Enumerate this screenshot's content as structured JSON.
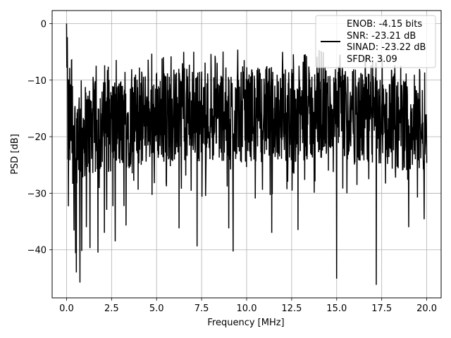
{
  "chart_data": {
    "type": "line",
    "xlabel": "Frequency [MHz]",
    "ylabel": "PSD [dB]",
    "xlim": [
      -0.8,
      20.8
    ],
    "ylim": [
      -48.5,
      2.3
    ],
    "xticks": [
      0.0,
      2.5,
      5.0,
      7.5,
      10.0,
      12.5,
      15.0,
      17.5,
      20.0
    ],
    "xtick_labels": [
      "0.0",
      "2.5",
      "5.0",
      "7.5",
      "10.0",
      "12.5",
      "15.0",
      "17.5",
      "20.0"
    ],
    "yticks": [
      0,
      -10,
      -20,
      -30,
      -40
    ],
    "ytick_labels": [
      "0",
      "−10",
      "−20",
      "−30",
      "−40"
    ],
    "grid": true,
    "legend_position": "top-right",
    "colors": {
      "line": "#000000",
      "grid": "#b0b0b0"
    },
    "series": [
      {
        "name": "ENOB: -4.15 bits\nSNR: -23.21 dB\nSINAD: -23.22 dB\nSFDR: 3.09",
        "legend_lines": [
          "ENOB: -4.15 bits",
          "SNR: -23.21 dB",
          "SINAD: -23.22 dB",
          "SFDR: 3.09"
        ],
        "x_start": 0.0,
        "x_end": 20.0,
        "points": 1400,
        "start_values": [
          0.0,
          -7.8,
          -2.5,
          -16.0
        ],
        "envelope": [
          {
            "x": 0.0,
            "top": -6.0,
            "bottom": -30.0
          },
          {
            "x": 1.0,
            "top": -10.0,
            "bottom": -28.0
          },
          {
            "x": 2.5,
            "top": -9.0,
            "bottom": -27.0
          },
          {
            "x": 5.0,
            "top": -7.5,
            "bottom": -25.0
          },
          {
            "x": 10.0,
            "top": -7.0,
            "bottom": -25.0
          },
          {
            "x": 15.0,
            "top": -7.0,
            "bottom": -25.0
          },
          {
            "x": 20.0,
            "top": -10.0,
            "bottom": -27.0
          }
        ],
        "minima": [
          {
            "x": 0.1,
            "y": -32.3
          },
          {
            "x": 0.42,
            "y": -36.6
          },
          {
            "x": 0.5,
            "y": -40.6
          },
          {
            "x": 0.55,
            "y": -44.0
          },
          {
            "x": 0.75,
            "y": -45.8
          },
          {
            "x": 0.85,
            "y": -40.2
          },
          {
            "x": 1.1,
            "y": -36.0
          },
          {
            "x": 1.3,
            "y": -39.7
          },
          {
            "x": 1.75,
            "y": -40.5
          },
          {
            "x": 2.1,
            "y": -37.0
          },
          {
            "x": 2.7,
            "y": -38.5
          },
          {
            "x": 3.3,
            "y": -35.7
          },
          {
            "x": 6.25,
            "y": -36.2
          },
          {
            "x": 7.25,
            "y": -39.4
          },
          {
            "x": 9.0,
            "y": -36.2
          },
          {
            "x": 9.25,
            "y": -40.3
          },
          {
            "x": 11.4,
            "y": -37.0
          },
          {
            "x": 12.85,
            "y": -36.5
          },
          {
            "x": 15.0,
            "y": -45.1
          },
          {
            "x": 17.2,
            "y": -46.2
          },
          {
            "x": 19.0,
            "y": -36.0
          },
          {
            "x": 19.85,
            "y": -34.6
          }
        ],
        "maxima": [
          {
            "x": 0.0,
            "y": 0.0
          },
          {
            "x": 0.05,
            "y": -2.5
          },
          {
            "x": 6.5,
            "y": -5.0
          },
          {
            "x": 12.0,
            "y": -5.0
          },
          {
            "x": 17.0,
            "y": -6.5
          }
        ]
      }
    ]
  }
}
